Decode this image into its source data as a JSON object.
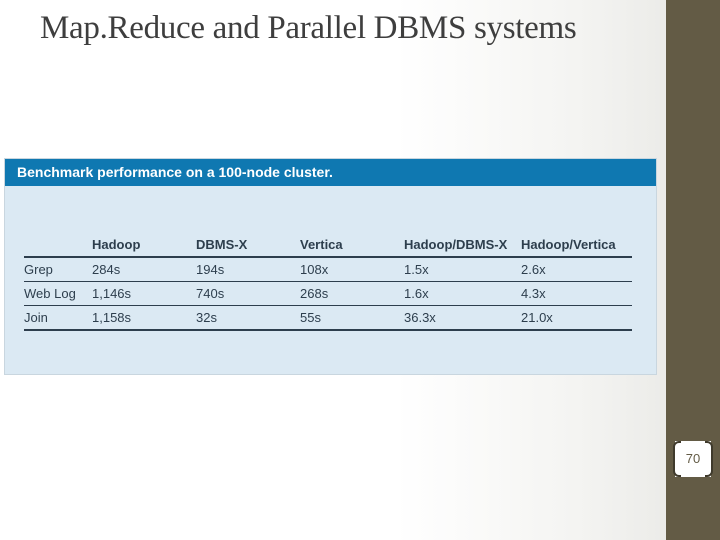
{
  "slide": {
    "title": "Map.Reduce and Parallel DBMS systems",
    "page_number": "70"
  },
  "figure": {
    "caption": "Benchmark performance on a 100-node cluster.",
    "columns": [
      "",
      "Hadoop",
      "DBMS-X",
      "Vertica",
      "Hadoop/DBMS-X",
      "Hadoop/Vertica"
    ],
    "rows": [
      [
        "Grep",
        "284s",
        "194s",
        "108x",
        "1.5x",
        "2.6x"
      ],
      [
        "Web Log",
        "1,146s",
        "740s",
        "268s",
        "1.6x",
        "4.3x"
      ],
      [
        "Join",
        "1,158s",
        "32s",
        "55s",
        "36.3x",
        "21.0x"
      ]
    ]
  },
  "colors": {
    "accent_bar": "#635b45",
    "header_blue": "#0f78b1",
    "panel_bg": "#dbe9f3"
  }
}
